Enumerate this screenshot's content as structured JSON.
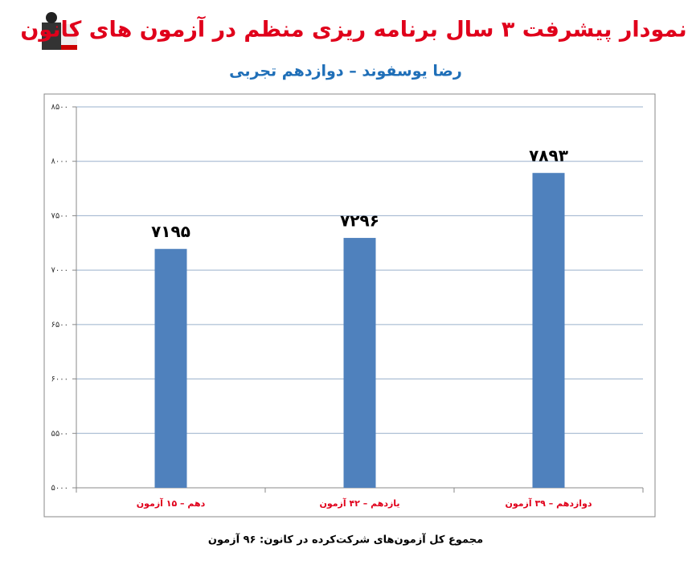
{
  "chart_data": {
    "type": "bar",
    "title": "نمودار پیشرفت ۳ سال برنامه ریزی منظم در آزمون های کانون",
    "subtitle": "رضا یوسفوند – دوازدهم تجربی",
    "categories": [
      "دهم – ۱۵ آزمون",
      "یازدهم – ۴۲ آزمون",
      "دوازدهم – ۳۹ آزمون"
    ],
    "values": [
      7195,
      7296,
      7893
    ],
    "value_labels": [
      "۷۱۹۵",
      "۷۲۹۶",
      "۷۸۹۳"
    ],
    "color": "#4f81bd",
    "ylim": [
      5000,
      8500
    ],
    "yticks": [
      {
        "value": 5000,
        "label": "۵۰۰۰"
      },
      {
        "value": 5500,
        "label": "۵۵۰۰"
      },
      {
        "value": 6000,
        "label": "۶۰۰۰"
      },
      {
        "value": 6500,
        "label": "۶۵۰۰"
      },
      {
        "value": 7000,
        "label": "۷۰۰۰"
      },
      {
        "value": 7500,
        "label": "۷۵۰۰"
      },
      {
        "value": 8000,
        "label": "۸۰۰۰"
      },
      {
        "value": 8500,
        "label": "۸۵۰۰"
      }
    ],
    "grid": true,
    "annotation": "مجموع کل آزمون‌های شرکت‌کرده در کانون: ۹۶ آزمون"
  }
}
